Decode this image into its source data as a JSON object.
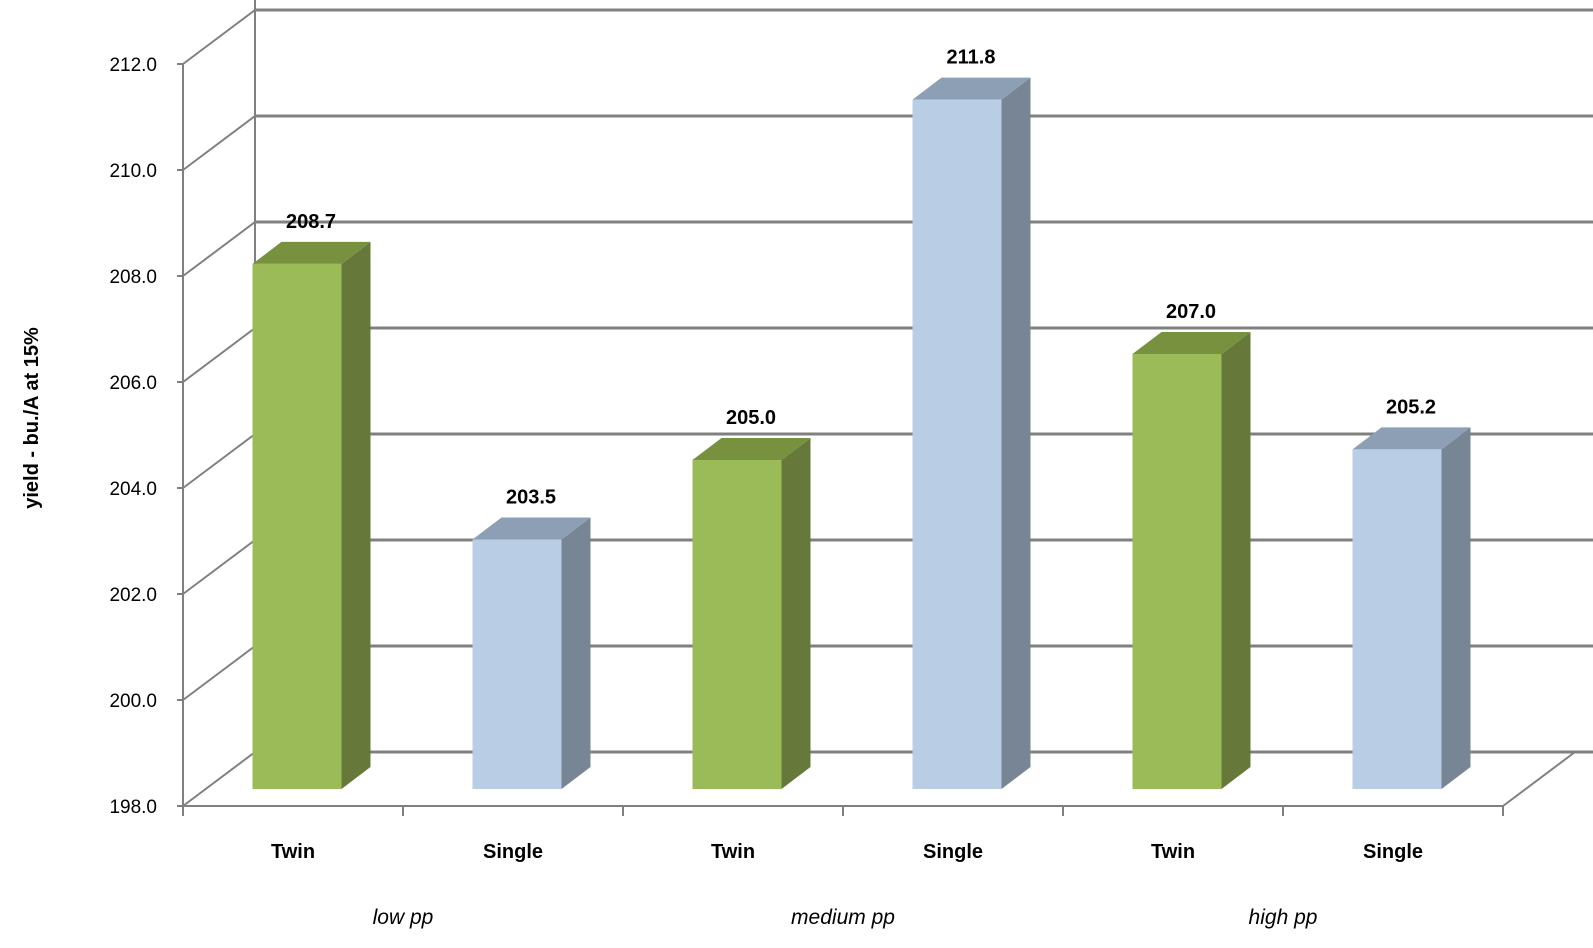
{
  "chart_data": {
    "type": "bar",
    "title": "",
    "xlabel": "",
    "ylabel": "yield - bu./A at 15%",
    "ylim": [
      198.0,
      212.0
    ],
    "yticks": [
      "198.0",
      "200.0",
      "202.0",
      "204.0",
      "206.0",
      "208.0",
      "210.0",
      "212.0"
    ],
    "grid": true,
    "categories": [
      "Twin",
      "Single",
      "Twin",
      "Single",
      "Twin",
      "Single"
    ],
    "groups": [
      "low pp",
      "medium pp",
      "high pp"
    ],
    "values": [
      208.7,
      203.5,
      205.0,
      211.8,
      207.0,
      205.2
    ],
    "value_labels": [
      "208.7",
      "203.5",
      "205.0",
      "211.8",
      "207.0",
      "205.2"
    ],
    "colors": {
      "Twin": {
        "front": "#9bbb59",
        "side": "#67793a",
        "top": "#77913f"
      },
      "Single": {
        "front": "#b9cde5",
        "side": "#778595",
        "top": "#8d9fb5"
      },
      "grid": "#808080",
      "axis": "#808080"
    }
  }
}
